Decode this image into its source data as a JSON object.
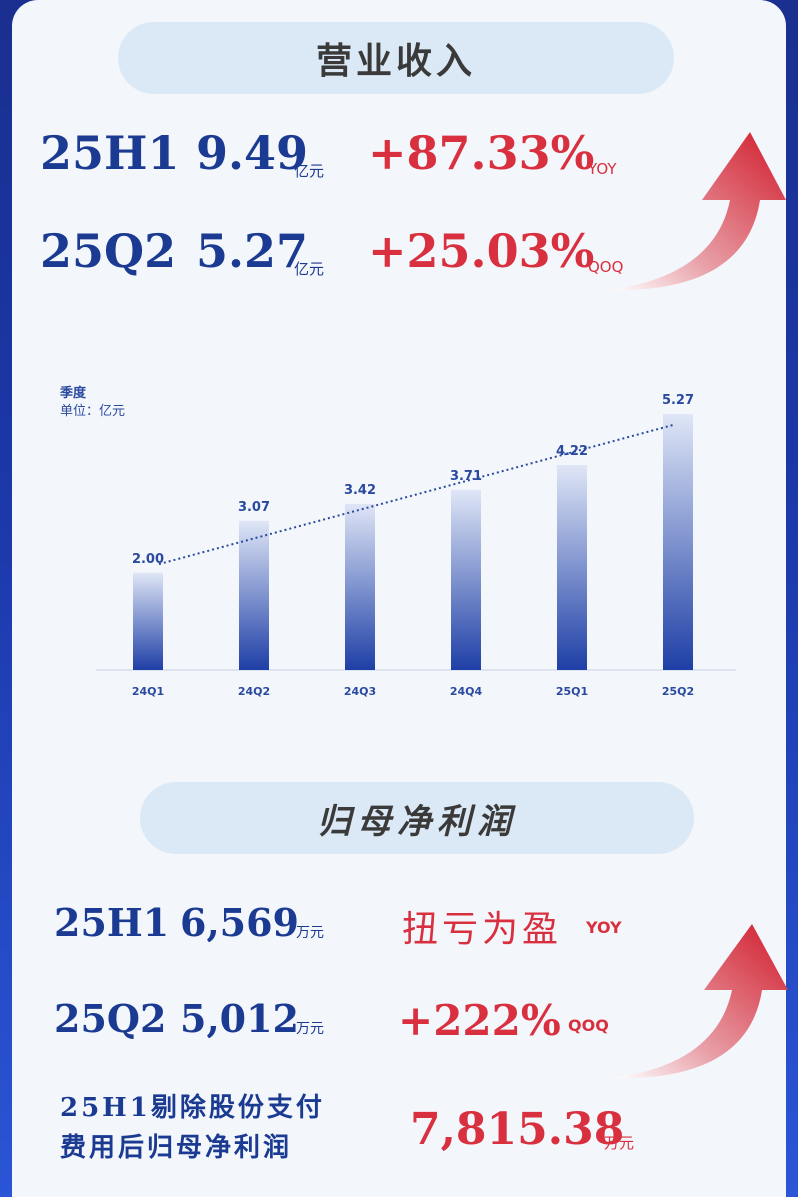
{
  "revenue": {
    "header": "营业收入",
    "rows": [
      {
        "period": "25H1",
        "value": "9.49",
        "unit": "亿元",
        "change": "+87.33%",
        "change_tag": "YOY"
      },
      {
        "period": "25Q2",
        "value": "5.27",
        "unit": "亿元",
        "change": "+25.03%",
        "change_tag": "QOQ"
      }
    ]
  },
  "chart_data": {
    "type": "bar",
    "title": "季度",
    "unit_label": "单位：亿元",
    "categories": [
      "24Q1",
      "24Q2",
      "24Q3",
      "24Q4",
      "25Q1",
      "25Q2"
    ],
    "values": [
      2.0,
      3.07,
      3.42,
      3.71,
      4.22,
      5.27
    ],
    "value_labels": [
      "2.00",
      "3.07",
      "3.42",
      "3.71",
      "4.22",
      "5.27"
    ],
    "trendline": true,
    "ylim": [
      0,
      5.6
    ],
    "grid": false,
    "colors": {
      "bar_top": "#dfe6f6",
      "bar_bottom": "#1e3fa6",
      "trend": "#2a4aa0",
      "label": "#2a4aa0"
    }
  },
  "net_profit": {
    "header": "归母净利润",
    "rows": [
      {
        "period": "25H1",
        "value": "6,569",
        "unit": "万元",
        "change": "扭亏为盈",
        "change_tag": "YOY"
      },
      {
        "period": "25Q2",
        "value": "5,012",
        "unit": "万元",
        "change": "+222%",
        "change_tag": "QOQ"
      }
    ],
    "adjusted": {
      "label_line1": "25H1剔除股份支付",
      "label_line2": "费用后归母净利润",
      "value": "7,815.38",
      "unit": "万元"
    }
  },
  "colors": {
    "accent_blue": "#1b3a92",
    "accent_red": "#d8303e",
    "pill_bg": "#dbe8f5"
  }
}
